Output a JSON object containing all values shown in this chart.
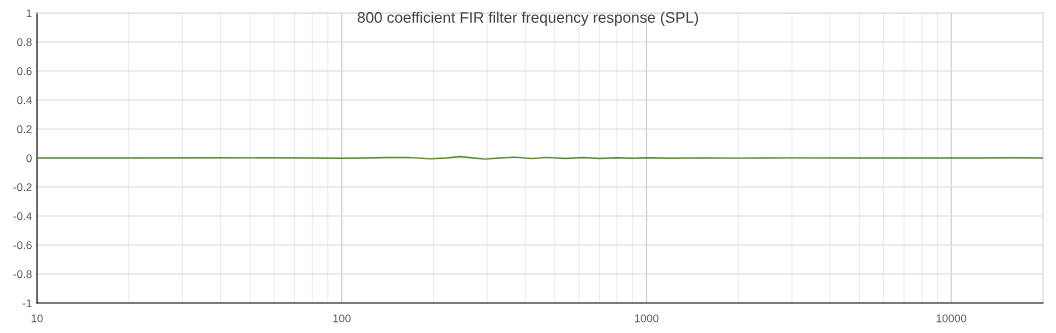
{
  "chart_data": {
    "type": "line",
    "title": "800 coefficient FIR filter frequency response (SPL)",
    "x": [
      10,
      20,
      40,
      80,
      100,
      120,
      140,
      165,
      195,
      220,
      245,
      270,
      295,
      330,
      370,
      420,
      470,
      540,
      620,
      700,
      800,
      900,
      1000,
      1200,
      1500,
      2000,
      3000,
      5000,
      8000,
      12000,
      16000,
      20000
    ],
    "series": [
      {
        "color": "#5b8a3a",
        "values": [
          0,
          0,
          0.002,
          0,
          -0.002,
          0,
          0.003,
          0.004,
          -0.006,
          0,
          0.01,
          0,
          -0.008,
          0,
          0.006,
          -0.004,
          0.004,
          -0.003,
          0.003,
          -0.003,
          0.002,
          -0.002,
          0.002,
          -0.002,
          0.001,
          -0.001,
          0.001,
          0,
          0,
          0,
          0.002,
          0
        ]
      }
    ],
    "xlim": [
      10,
      20000
    ],
    "xticks": [
      10,
      100,
      1000,
      10000
    ],
    "ylim": [
      -1,
      1
    ],
    "yticks": [
      -1,
      -0.8,
      -0.6,
      -0.4,
      -0.2,
      0,
      0.2,
      0.4,
      0.6,
      0.8,
      1
    ],
    "log": "x",
    "grid": true,
    "legend": false,
    "marker": "none",
    "line_style": "solid"
  }
}
